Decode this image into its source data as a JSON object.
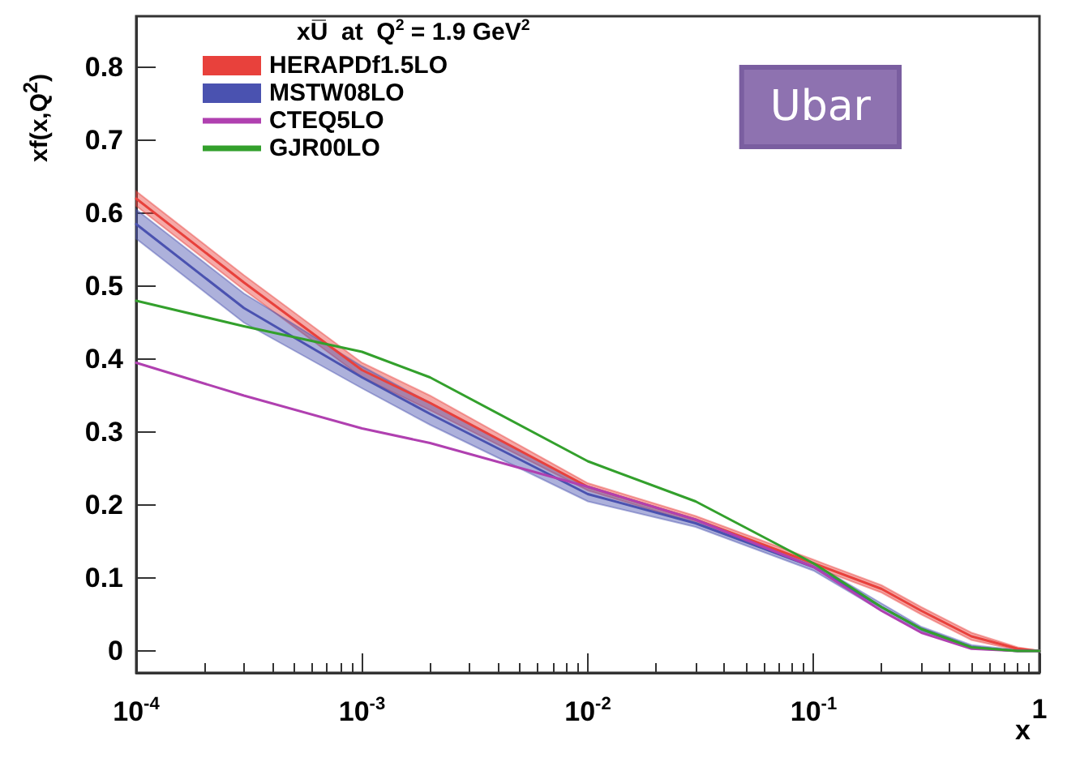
{
  "chart_data": {
    "type": "line",
    "title": "xU̅  at  Q$^{2}$ = 1.9 GeV$^{2}$",
    "xlabel": "x",
    "ylabel": "xf(x,Q$^{2}$)",
    "annotations": [
      "Ubar"
    ],
    "x": [
      0.0001,
      0.0003,
      0.001,
      0.002,
      0.01,
      0.03,
      0.1,
      0.2,
      0.3,
      0.5,
      0.8,
      1
    ],
    "series": [
      {
        "name": "HERAPDf1.5LO",
        "color": "#e8413c",
        "values": [
          0.62,
          0.505,
          0.385,
          0.34,
          0.225,
          0.18,
          0.12,
          0.085,
          0.055,
          0.02,
          0.003,
          0
        ],
        "lower": [
          0.61,
          0.495,
          0.375,
          0.33,
          0.22,
          0.175,
          0.115,
          0.08,
          0.05,
          0.015,
          0.001,
          0
        ],
        "upper": [
          0.63,
          0.515,
          0.395,
          0.35,
          0.23,
          0.185,
          0.125,
          0.09,
          0.06,
          0.025,
          0.005,
          0
        ]
      },
      {
        "name": "MSTW08LO",
        "color": "#4a52b0",
        "values": [
          0.585,
          0.47,
          0.375,
          0.325,
          0.215,
          0.175,
          0.115,
          0.06,
          0.03,
          0.005,
          0,
          0
        ],
        "lower": [
          0.565,
          0.45,
          0.36,
          0.31,
          0.205,
          0.17,
          0.11,
          0.055,
          0.027,
          0.003,
          0,
          0
        ],
        "upper": [
          0.605,
          0.49,
          0.39,
          0.34,
          0.225,
          0.18,
          0.12,
          0.065,
          0.033,
          0.008,
          0.001,
          0
        ]
      },
      {
        "name": "CTEQ5LO",
        "color": "#b040b0",
        "values": [
          0.395,
          0.35,
          0.305,
          0.285,
          0.225,
          0.18,
          0.115,
          0.055,
          0.025,
          0.003,
          0,
          0
        ]
      },
      {
        "name": "GJR00LO",
        "color": "#33a02c",
        "values": [
          0.48,
          0.445,
          0.41,
          0.375,
          0.26,
          0.205,
          0.12,
          0.06,
          0.03,
          0.005,
          0,
          0
        ]
      }
    ],
    "xlim": [
      0.0001,
      1
    ],
    "xticks": [
      {
        "value": 0.0001,
        "label": "10$^{-4}$"
      },
      {
        "value": 0.001,
        "label": "10$^{-3}$"
      },
      {
        "value": 0.01,
        "label": "10$^{-2}$"
      },
      {
        "value": 0.1,
        "label": "10$^{-1}$"
      },
      1
    ],
    "ylim": [
      -0.03,
      0.87
    ],
    "yticks": [
      0,
      0.1,
      0.2,
      0.3,
      0.4,
      0.5,
      0.6,
      0.7,
      0.8
    ],
    "log": "x",
    "grid": false,
    "legend": "top left",
    "marker": "none",
    "line_style": "solid"
  }
}
